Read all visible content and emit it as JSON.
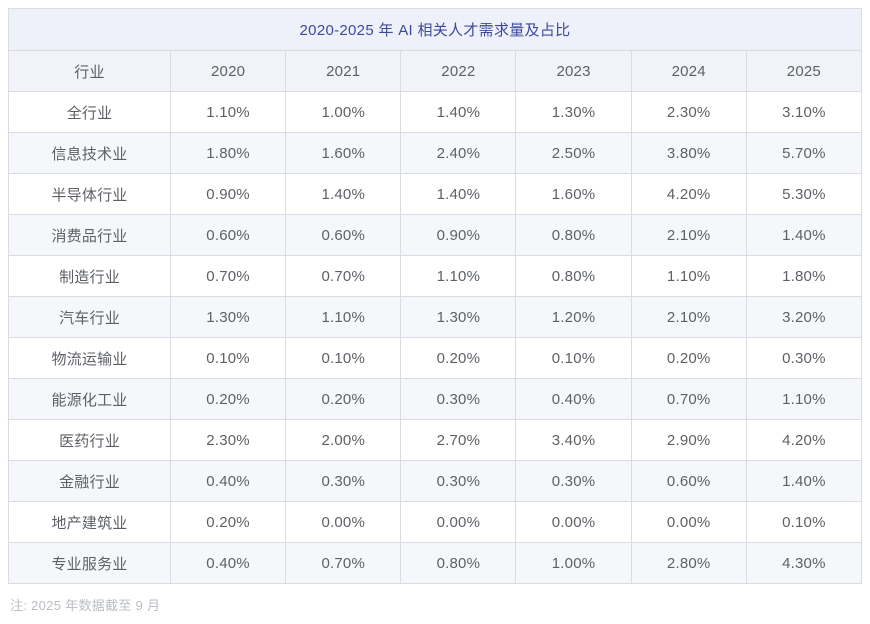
{
  "table": {
    "title": "2020-2025 年 AI 相关人才需求量及占比",
    "columns": [
      "行业",
      "2020",
      "2021",
      "2022",
      "2023",
      "2024",
      "2025"
    ],
    "rows": [
      {
        "label": "全行业",
        "values": [
          "1.10%",
          "1.00%",
          "1.40%",
          "1.30%",
          "2.30%",
          "3.10%"
        ]
      },
      {
        "label": "信息技术业",
        "values": [
          "1.80%",
          "1.60%",
          "2.40%",
          "2.50%",
          "3.80%",
          "5.70%"
        ]
      },
      {
        "label": "半导体行业",
        "values": [
          "0.90%",
          "1.40%",
          "1.40%",
          "1.60%",
          "4.20%",
          "5.30%"
        ]
      },
      {
        "label": "消费品行业",
        "values": [
          "0.60%",
          "0.60%",
          "0.90%",
          "0.80%",
          "2.10%",
          "1.40%"
        ]
      },
      {
        "label": "制造行业",
        "values": [
          "0.70%",
          "0.70%",
          "1.10%",
          "0.80%",
          "1.10%",
          "1.80%"
        ]
      },
      {
        "label": "汽车行业",
        "values": [
          "1.30%",
          "1.10%",
          "1.30%",
          "1.20%",
          "2.10%",
          "3.20%"
        ]
      },
      {
        "label": "物流运输业",
        "values": [
          "0.10%",
          "0.10%",
          "0.20%",
          "0.10%",
          "0.20%",
          "0.30%"
        ]
      },
      {
        "label": "能源化工业",
        "values": [
          "0.20%",
          "0.20%",
          "0.30%",
          "0.40%",
          "0.70%",
          "1.10%"
        ]
      },
      {
        "label": "医药行业",
        "values": [
          "2.30%",
          "2.00%",
          "2.70%",
          "3.40%",
          "2.90%",
          "4.20%"
        ]
      },
      {
        "label": "金融行业",
        "values": [
          "0.40%",
          "0.30%",
          "0.30%",
          "0.30%",
          "0.60%",
          "1.40%"
        ]
      },
      {
        "label": "地产建筑业",
        "values": [
          "0.20%",
          "0.00%",
          "0.00%",
          "0.00%",
          "0.00%",
          "0.10%"
        ]
      },
      {
        "label": "专业服务业",
        "values": [
          "0.40%",
          "0.70%",
          "0.80%",
          "1.00%",
          "2.80%",
          "4.30%"
        ]
      }
    ],
    "note": "注: 2025 年数据截至 9 月"
  },
  "colors": {
    "title_bg": "#eef1f9",
    "title_text": "#3d4a9c",
    "header_bg": "#f1f3f8",
    "stripe_bg": "#f6f7fa",
    "border": "#d9dce2",
    "cell_text": "#5d6166",
    "note_text": "#b9bdc3"
  },
  "chart_data": {
    "type": "table",
    "title": "2020-2025 年 AI 相关人才需求量及占比",
    "unit": "percent",
    "categories": [
      "2020",
      "2021",
      "2022",
      "2023",
      "2024",
      "2025"
    ],
    "series": [
      {
        "name": "全行业",
        "values": [
          1.1,
          1.0,
          1.4,
          1.3,
          2.3,
          3.1
        ]
      },
      {
        "name": "信息技术业",
        "values": [
          1.8,
          1.6,
          2.4,
          2.5,
          3.8,
          5.7
        ]
      },
      {
        "name": "半导体行业",
        "values": [
          0.9,
          1.4,
          1.4,
          1.6,
          4.2,
          5.3
        ]
      },
      {
        "name": "消费品行业",
        "values": [
          0.6,
          0.6,
          0.9,
          0.8,
          2.1,
          1.4
        ]
      },
      {
        "name": "制造行业",
        "values": [
          0.7,
          0.7,
          1.1,
          0.8,
          1.1,
          1.8
        ]
      },
      {
        "name": "汽车行业",
        "values": [
          1.3,
          1.1,
          1.3,
          1.2,
          2.1,
          3.2
        ]
      },
      {
        "name": "物流运输业",
        "values": [
          0.1,
          0.1,
          0.2,
          0.1,
          0.2,
          0.3
        ]
      },
      {
        "name": "能源化工业",
        "values": [
          0.2,
          0.2,
          0.3,
          0.4,
          0.7,
          1.1
        ]
      },
      {
        "name": "医药行业",
        "values": [
          2.3,
          2.0,
          2.7,
          3.4,
          2.9,
          4.2
        ]
      },
      {
        "name": "金融行业",
        "values": [
          0.4,
          0.3,
          0.3,
          0.3,
          0.6,
          1.4
        ]
      },
      {
        "name": "地产建筑业",
        "values": [
          0.2,
          0.0,
          0.0,
          0.0,
          0.0,
          0.1
        ]
      },
      {
        "name": "专业服务业",
        "values": [
          0.4,
          0.7,
          0.8,
          1.0,
          2.8,
          4.3
        ]
      }
    ],
    "annotations": [
      "注: 2025 年数据截至 9 月"
    ]
  }
}
